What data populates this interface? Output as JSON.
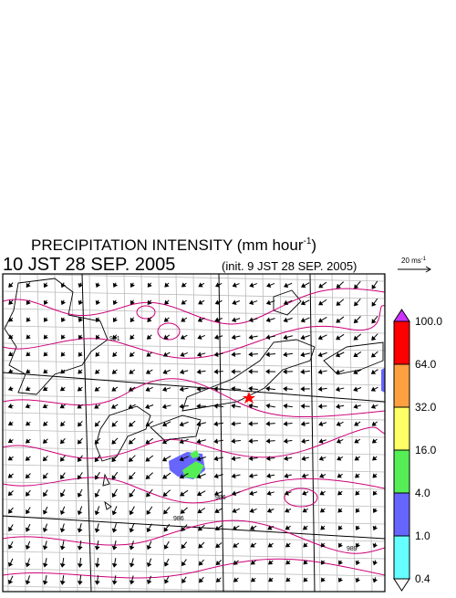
{
  "header": {
    "title": {
      "main": "PRECIPITATION INTENSITY (mm hour",
      "sup": "-1",
      "end": ")"
    },
    "valid_time": "10 JST 28 SEP. 2005",
    "init_time": "(init. 9 JST 28 SEP. 2005)"
  },
  "wind_scale": {
    "text": "20 ms",
    "sup": "-1"
  },
  "legend": {
    "levels": [
      "100.0",
      "64.0",
      "32.0",
      "16.0",
      "4.0",
      "1.0",
      "0.4"
    ],
    "colors": [
      "#cc33ff",
      "#ff0000",
      "#ffa040",
      "#ffff66",
      "#55ee55",
      "#6666ff",
      "#66ffff",
      "#ffffff"
    ]
  },
  "map": {
    "contour_labels": [
      "991",
      "986",
      "986",
      "989"
    ]
  }
}
